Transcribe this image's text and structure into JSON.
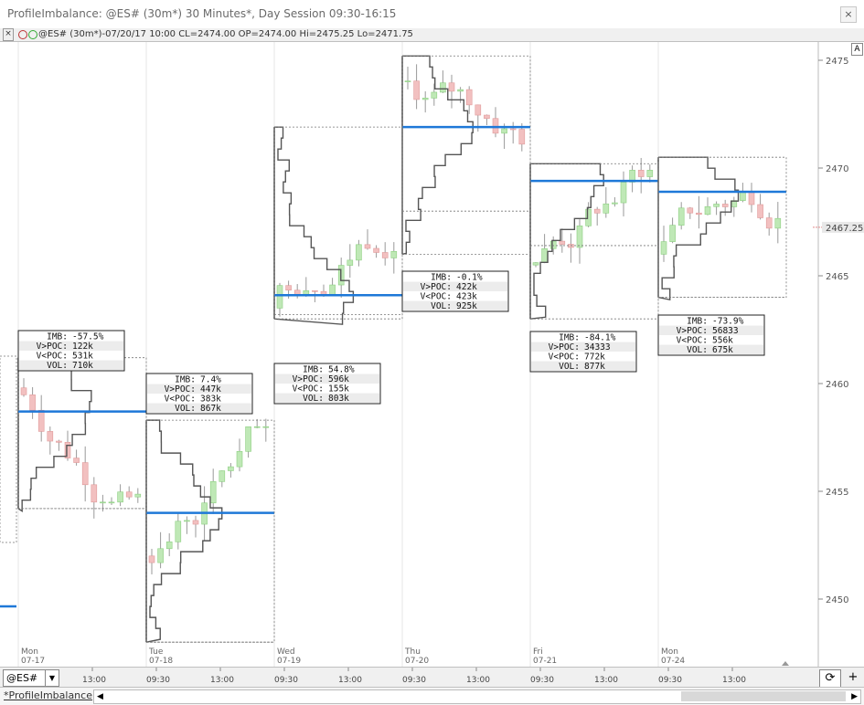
{
  "window": {
    "title": "ProfileImbalance: @ES# (30m*) 30 Minutes*, Day Session 09:30-16:15",
    "close_label": "×"
  },
  "infobar": {
    "close_label": "×",
    "text": "@ES# (30m*)-07/20/17 10:00 CL=2474.00 OP=2474.00 Hi=2475.25 Lo=2471.75"
  },
  "autoscale_label": "A",
  "price_axis": {
    "ticks": [
      "2475",
      "2470",
      "2465",
      "2460",
      "2455",
      "2450"
    ],
    "current_price": "2467.25"
  },
  "days": [
    {
      "wd": "Mon",
      "date": "07-17"
    },
    {
      "wd": "Tue",
      "date": "07-18"
    },
    {
      "wd": "Wed",
      "date": "07-19"
    },
    {
      "wd": "Thu",
      "date": "07-20"
    },
    {
      "wd": "Fri",
      "date": "07-21"
    },
    {
      "wd": "Mon",
      "date": "07-24"
    }
  ],
  "time_labels": [
    "13:00",
    "09:30",
    "13:00",
    "09:30",
    "13:00",
    "09:30",
    "13:00",
    "09:30",
    "13:00",
    "09:30",
    "13:00"
  ],
  "profiles": [
    {
      "imb": "-57.5%",
      "vup": "122k",
      "vdn": "531k",
      "vol": "710k"
    },
    {
      "imb": "7.4%",
      "vup": "447k",
      "vdn": "383k",
      "vol": "867k"
    },
    {
      "imb": "54.8%",
      "vup": "596k",
      "vdn": "155k",
      "vol": "803k"
    },
    {
      "imb": "-0.1%",
      "vup": "422k",
      "vdn": "423k",
      "vol": "925k"
    },
    {
      "imb": "-84.1%",
      "vup": "34333",
      "vdn": "772k",
      "vol": "877k"
    },
    {
      "imb": "-73.9%",
      "vup": "56833",
      "vdn": "556k",
      "vol": "675k"
    }
  ],
  "stat_labels": {
    "imb": "IMB:",
    "vup": "V>POC:",
    "vdn": "V<POC:",
    "vol": "VOL:"
  },
  "symbol": {
    "value": "@ES#"
  },
  "refresh_label": "⟳",
  "add_label": "+",
  "tab": {
    "label": "*ProfileImbalance"
  },
  "colors": {
    "poc": "#1e78d8",
    "up": "#bfe8b6",
    "down": "#f2c0c0",
    "profile": "#555555"
  }
}
